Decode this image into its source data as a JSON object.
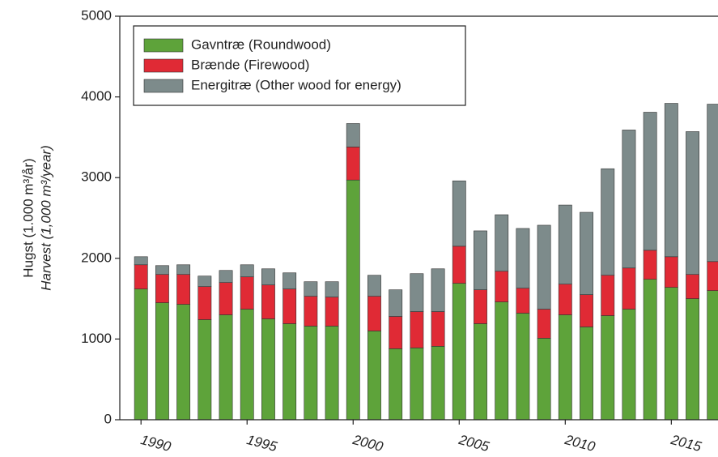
{
  "chart_data": {
    "type": "stacked-bar",
    "y_label": "Hugst (1.000 m³/år)",
    "y_label_2": "Harvest (1,000 m³/year)",
    "x": [
      1990,
      1991,
      1992,
      1993,
      1994,
      1995,
      1996,
      1997,
      1998,
      1999,
      2000,
      2001,
      2002,
      2003,
      2004,
      2005,
      2006,
      2007,
      2008,
      2009,
      2010,
      2011,
      2012,
      2013,
      2014,
      2015,
      2016,
      2017
    ],
    "series": [
      {
        "name": "Gavntræ (Roundwood)",
        "color": "#5ea33a",
        "values": [
          1620,
          1450,
          1430,
          1240,
          1300,
          1370,
          1250,
          1190,
          1160,
          1160,
          2970,
          1100,
          880,
          890,
          910,
          1690,
          1190,
          1460,
          1320,
          1010,
          1300,
          1150,
          1290,
          1370,
          1740,
          1640,
          1500,
          1600
        ]
      },
      {
        "name": "Brænde (Firewood)",
        "color": "#e02a35",
        "values": [
          300,
          350,
          370,
          410,
          400,
          400,
          420,
          430,
          370,
          360,
          410,
          430,
          400,
          450,
          430,
          460,
          420,
          380,
          310,
          360,
          380,
          400,
          500,
          510,
          360,
          380,
          300,
          360
        ]
      },
      {
        "name": "Energitræ (Other wood for energy)",
        "color": "#7d8b8b",
        "values": [
          100,
          110,
          120,
          130,
          150,
          150,
          200,
          200,
          180,
          190,
          290,
          260,
          330,
          470,
          530,
          810,
          730,
          700,
          740,
          1040,
          980,
          1020,
          1320,
          1710,
          1710,
          1900,
          1770,
          1950
        ]
      }
    ],
    "xlim": [
      1989,
      2017.2
    ],
    "xticks": [
      1990,
      1995,
      2000,
      2005,
      2010,
      2015
    ],
    "ylim": [
      0,
      5000
    ],
    "yticks": [
      0,
      1000,
      2000,
      3000,
      4000,
      5000
    ],
    "legend": "upper-left"
  }
}
